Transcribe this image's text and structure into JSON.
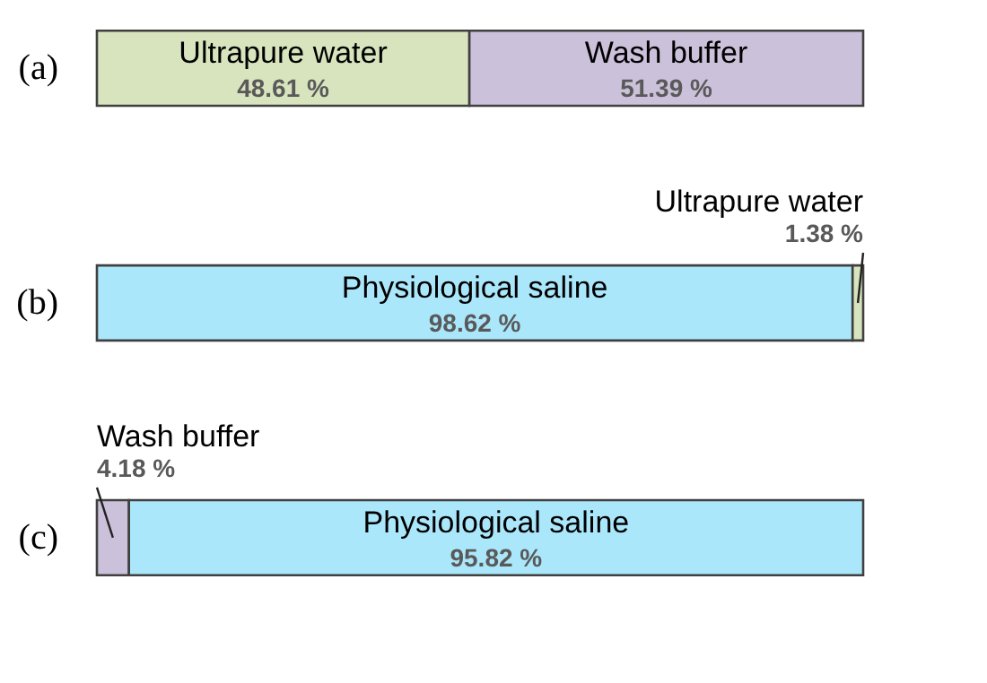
{
  "chart_data": {
    "type": "bar",
    "orientation": "horizontal",
    "stacked": true,
    "categories": [
      "(a)",
      "(b)",
      "(c)"
    ],
    "series": [
      {
        "name": "Ultrapure water",
        "color": "#d7e4bd",
        "values": [
          48.61,
          null,
          null
        ],
        "value_labels": [
          "48.61 %",
          null,
          null
        ]
      },
      {
        "name": "Wash buffer",
        "color": "#ccc1da",
        "values": [
          51.39,
          null,
          4.18
        ],
        "value_labels": [
          "51.39 %",
          null,
          "4.18 %"
        ]
      },
      {
        "name": "Physiological saline",
        "color": "#abe7fb",
        "values": [
          null,
          98.62,
          95.82
        ],
        "value_labels": [
          null,
          "98.62 %",
          "95.82 %"
        ]
      },
      {
        "name": "Ultrapure water",
        "color": "#d7e4bd",
        "values": [
          null,
          1.38,
          null
        ],
        "value_labels": [
          null,
          "1.38 %",
          null
        ]
      }
    ],
    "legend": false
  }
}
